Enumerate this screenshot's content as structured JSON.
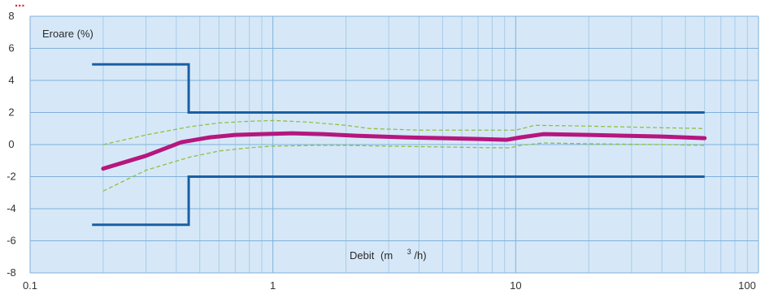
{
  "title_fragment": "...",
  "colors": {
    "plot_bg": "#d6e8f7",
    "grid_major": "#7fb1dd",
    "grid_minor": "#a8cbea",
    "limit_line": "#1a5fa3",
    "curve": "#b5177e",
    "band": "#8fc041",
    "title": "#d9272e"
  },
  "chart_data": {
    "type": "line",
    "title": "",
    "xlabel": "Debit (m³/h)",
    "xlabel_parts": {
      "main": "Debit",
      "pre_unit": "(m",
      "sup": "3",
      "post": "/h)"
    },
    "ylabel": "Eroare (%)",
    "x_scale": "log",
    "xlim": [
      0.1,
      100
    ],
    "ylim": [
      -8,
      8
    ],
    "x_ticks": [
      {
        "v": 0.1,
        "label": "0.1"
      },
      {
        "v": 1,
        "label": "1"
      },
      {
        "v": 10,
        "label": "10"
      },
      {
        "v": 100,
        "label": "100"
      }
    ],
    "y_ticks": [
      {
        "v": 8,
        "label": "8"
      },
      {
        "v": 6,
        "label": "6"
      },
      {
        "v": 4,
        "label": "4"
      },
      {
        "v": 2,
        "label": "2"
      },
      {
        "v": 0,
        "label": "0"
      },
      {
        "v": -2,
        "label": "-2"
      },
      {
        "v": -4,
        "label": "-4"
      },
      {
        "v": -6,
        "label": "-6"
      },
      {
        "v": -8,
        "label": "-8"
      }
    ],
    "grid": true,
    "series": [
      {
        "kind": "limit",
        "x": [
          0.18,
          0.45,
          0.45,
          60
        ],
        "y": [
          5,
          5,
          2,
          2
        ]
      },
      {
        "kind": "limit",
        "x": [
          0.18,
          0.45,
          0.45,
          60
        ],
        "y": [
          -5,
          -5,
          -2,
          -2
        ]
      },
      {
        "kind": "curve",
        "x": [
          0.2,
          0.3,
          0.42,
          0.55,
          0.7,
          0.9,
          1.2,
          1.6,
          2.2,
          3.5,
          5,
          7,
          9.2,
          10.5,
          13,
          20,
          40,
          60
        ],
        "y": [
          -1.5,
          -0.7,
          0.15,
          0.45,
          0.6,
          0.65,
          0.7,
          0.65,
          0.55,
          0.45,
          0.4,
          0.35,
          0.3,
          0.45,
          0.65,
          0.6,
          0.5,
          0.4
        ]
      },
      {
        "kind": "band",
        "x": [
          0.2,
          0.3,
          0.45,
          0.6,
          0.8,
          1.0,
          1.4,
          2.0,
          2.5,
          4,
          6,
          9,
          10,
          12,
          20,
          40,
          60
        ],
        "y": [
          0,
          0.6,
          1.1,
          1.35,
          1.45,
          1.5,
          1.4,
          1.2,
          1.0,
          0.9,
          0.9,
          0.9,
          0.9,
          1.2,
          1.15,
          1.05,
          1.0
        ]
      },
      {
        "kind": "band",
        "x": [
          0.2,
          0.3,
          0.45,
          0.6,
          0.8,
          1.0,
          1.5,
          2.0,
          3,
          5,
          8,
          9.5,
          10.5,
          13,
          20,
          40,
          60
        ],
        "y": [
          -2.9,
          -1.6,
          -0.8,
          -0.4,
          -0.2,
          -0.1,
          -0.05,
          -0.05,
          -0.1,
          -0.15,
          -0.2,
          -0.2,
          -0.05,
          0.1,
          0.05,
          0.0,
          -0.05
        ]
      }
    ]
  }
}
